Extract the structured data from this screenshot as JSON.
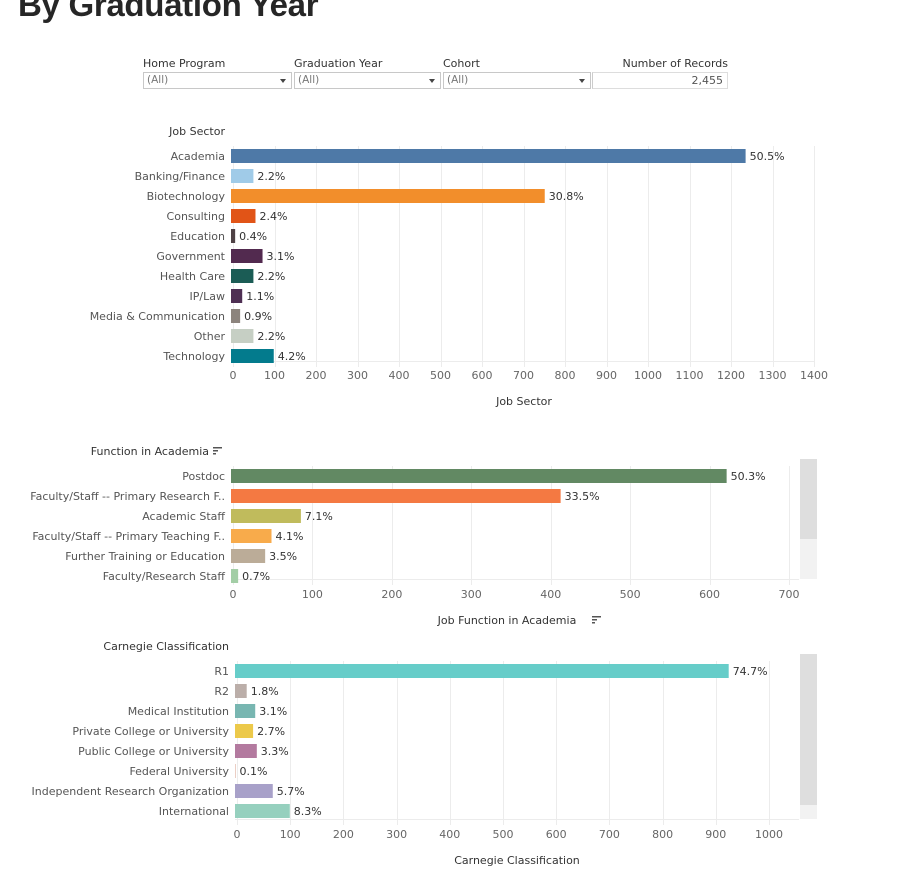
{
  "page": {
    "title": "By Graduation Year"
  },
  "filters": [
    {
      "label": "Home Program",
      "value": "(All)"
    },
    {
      "label": "Graduation Year",
      "value": "(All)"
    },
    {
      "label": "Cohort",
      "value": "(All)"
    }
  ],
  "records": {
    "label": "Number of Records",
    "value": "2,455"
  },
  "colors": {
    "gridline": "#ececec",
    "axis_text": "#666666",
    "row_label": "#555555",
    "header_text": "#333333",
    "scrollbar_track": "#f2f2f2",
    "scrollbar_thumb": "#dedede"
  },
  "chart_data": [
    {
      "type": "bar",
      "orientation": "horizontal",
      "header": "Job Sector",
      "xlabel": "Job Sector",
      "categories": [
        "Academia",
        "Banking/Finance",
        "Biotechnology",
        "Consulting",
        "Education",
        "Government",
        "Health Care",
        "IP/Law",
        "Media & Communication",
        "Other",
        "Technology"
      ],
      "values": [
        1240,
        54,
        756,
        59,
        10,
        76,
        54,
        27,
        22,
        54,
        103
      ],
      "labels": [
        "50.5%",
        "2.2%",
        "30.8%",
        "2.4%",
        "0.4%",
        "3.1%",
        "2.2%",
        "1.1%",
        "0.9%",
        "2.2%",
        "4.2%"
      ],
      "colors": [
        "#4e79a7",
        "#a0cbe8",
        "#f28e2b",
        "#e15417",
        "#4f4245",
        "#522a4f",
        "#1b5c55",
        "#4e2f53",
        "#8c847d",
        "#c6cfc4",
        "#037b8d"
      ],
      "xlim": [
        0,
        1400
      ],
      "xticks": [
        0,
        100,
        200,
        300,
        400,
        500,
        600,
        700,
        800,
        900,
        1000,
        1100,
        1200,
        1300,
        1400
      ],
      "grid": true,
      "sort_icon": false,
      "scrollbar": false
    },
    {
      "type": "bar",
      "orientation": "horizontal",
      "header": "Function in Academia",
      "xlabel": "Job Function in Academia",
      "categories": [
        "Postdoc",
        "Faculty/Staff -- Primary Research F..",
        "Academic Staff",
        "Faculty/Staff -- Primary Teaching F..",
        "Further Training or Education",
        "Faculty/Research Staff"
      ],
      "values": [
        624,
        415,
        88,
        51,
        43,
        9
      ],
      "labels": [
        "50.3%",
        "33.5%",
        "7.1%",
        "4.1%",
        "3.5%",
        "0.7%"
      ],
      "colors": [
        "#628963",
        "#f47942",
        "#c0bb5c",
        "#f8ab4b",
        "#bbac98",
        "#a3cea6"
      ],
      "xlim": [
        0,
        720
      ],
      "xticks": [
        0,
        100,
        200,
        300,
        400,
        500,
        600,
        700
      ],
      "grid": true,
      "sort_icon": true,
      "scrollbar": true
    },
    {
      "type": "bar",
      "orientation": "horizontal",
      "header": "Carnegie Classification",
      "xlabel": "Carnegie Classification",
      "categories": [
        "R1",
        "R2",
        "Medical Institution",
        "Private College or University",
        "Public College or University",
        "Federal University",
        "Independent Research Organization",
        "International"
      ],
      "values": [
        928,
        22,
        38,
        34,
        41,
        1,
        71,
        103
      ],
      "labels": [
        "74.7%",
        "1.8%",
        "3.1%",
        "2.7%",
        "3.3%",
        "0.1%",
        "5.7%",
        "8.3%"
      ],
      "colors": [
        "#66cdc9",
        "#bbaea9",
        "#78b6b1",
        "#ecc94a",
        "#b37a9f",
        "#d9a48f",
        "#a8a1c9",
        "#96d0be"
      ],
      "xlim": [
        0,
        1030
      ],
      "xticks": [
        0,
        100,
        200,
        300,
        400,
        500,
        600,
        700,
        800,
        900,
        1000
      ],
      "grid": true,
      "sort_icon": false,
      "scrollbar": true
    }
  ]
}
